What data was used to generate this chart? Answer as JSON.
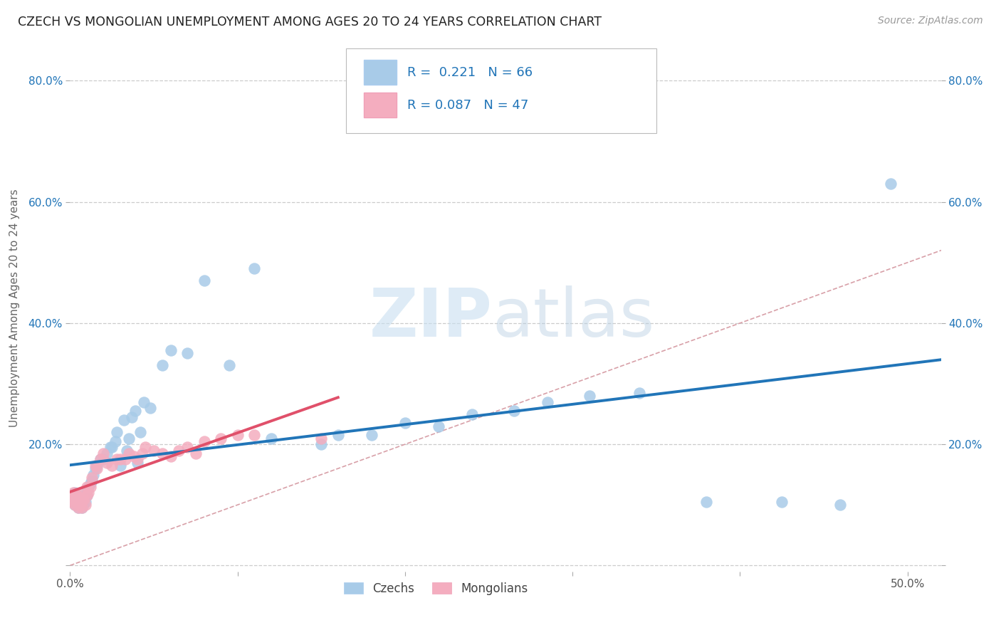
{
  "title": "CZECH VS MONGOLIAN UNEMPLOYMENT AMONG AGES 20 TO 24 YEARS CORRELATION CHART",
  "source": "Source: ZipAtlas.com",
  "ylabel": "Unemployment Among Ages 20 to 24 years",
  "xlim": [
    0.0,
    0.52
  ],
  "ylim": [
    -0.01,
    0.86
  ],
  "xticks": [
    0.0,
    0.1,
    0.2,
    0.3,
    0.4,
    0.5
  ],
  "xticklabels": [
    "0.0%",
    "",
    "",
    "",
    "",
    "50.0%"
  ],
  "yticks": [
    0.0,
    0.2,
    0.4,
    0.6,
    0.8
  ],
  "yticklabels_left": [
    "",
    "20.0%",
    "40.0%",
    "60.0%",
    "80.0%"
  ],
  "yticklabels_right": [
    "",
    "20.0%",
    "40.0%",
    "60.0%",
    "80.0%"
  ],
  "czech_R": "0.221",
  "czech_N": "66",
  "mongolian_R": "0.087",
  "mongolian_N": "47",
  "czech_scatter_color": "#A8CBE8",
  "mongolian_scatter_color": "#F4ADBF",
  "czech_line_color": "#2175B8",
  "mongolian_line_color": "#E0506A",
  "diagonal_color": "#D8A0A8",
  "background_color": "#FFFFFF",
  "grid_color": "#CCCCCC",
  "legend_czechs": "Czechs",
  "legend_mongolians": "Mongolians",
  "czech_x": [
    0.001,
    0.001,
    0.002,
    0.002,
    0.003,
    0.003,
    0.003,
    0.004,
    0.004,
    0.004,
    0.005,
    0.005,
    0.005,
    0.006,
    0.006,
    0.007,
    0.007,
    0.008,
    0.008,
    0.009,
    0.01,
    0.01,
    0.011,
    0.012,
    0.013,
    0.014,
    0.015,
    0.016,
    0.018,
    0.02,
    0.022,
    0.024,
    0.025,
    0.027,
    0.028,
    0.03,
    0.032,
    0.034,
    0.035,
    0.037,
    0.039,
    0.04,
    0.042,
    0.044,
    0.048,
    0.055,
    0.06,
    0.07,
    0.08,
    0.095,
    0.11,
    0.12,
    0.15,
    0.16,
    0.18,
    0.2,
    0.22,
    0.24,
    0.265,
    0.285,
    0.31,
    0.34,
    0.38,
    0.425,
    0.46,
    0.49
  ],
  "czech_y": [
    0.11,
    0.115,
    0.105,
    0.115,
    0.1,
    0.11,
    0.12,
    0.1,
    0.11,
    0.115,
    0.095,
    0.105,
    0.115,
    0.1,
    0.11,
    0.095,
    0.11,
    0.1,
    0.115,
    0.105,
    0.115,
    0.125,
    0.13,
    0.135,
    0.14,
    0.15,
    0.16,
    0.165,
    0.175,
    0.175,
    0.185,
    0.195,
    0.195,
    0.205,
    0.22,
    0.165,
    0.24,
    0.19,
    0.21,
    0.245,
    0.255,
    0.17,
    0.22,
    0.27,
    0.26,
    0.33,
    0.355,
    0.35,
    0.47,
    0.33,
    0.49,
    0.21,
    0.2,
    0.215,
    0.215,
    0.235,
    0.23,
    0.25,
    0.255,
    0.27,
    0.28,
    0.285,
    0.105,
    0.105,
    0.1,
    0.63
  ],
  "mongolian_x": [
    0.001,
    0.001,
    0.002,
    0.002,
    0.003,
    0.003,
    0.004,
    0.004,
    0.005,
    0.005,
    0.005,
    0.006,
    0.006,
    0.007,
    0.007,
    0.008,
    0.009,
    0.01,
    0.01,
    0.011,
    0.012,
    0.013,
    0.015,
    0.016,
    0.018,
    0.02,
    0.022,
    0.025,
    0.028,
    0.03,
    0.033,
    0.035,
    0.038,
    0.04,
    0.043,
    0.045,
    0.05,
    0.055,
    0.06,
    0.065,
    0.07,
    0.075,
    0.08,
    0.09,
    0.1,
    0.11,
    0.15
  ],
  "mongolian_y": [
    0.115,
    0.105,
    0.11,
    0.12,
    0.1,
    0.115,
    0.105,
    0.115,
    0.095,
    0.108,
    0.118,
    0.102,
    0.112,
    0.095,
    0.11,
    0.108,
    0.1,
    0.115,
    0.13,
    0.12,
    0.13,
    0.145,
    0.165,
    0.16,
    0.175,
    0.185,
    0.17,
    0.165,
    0.175,
    0.175,
    0.175,
    0.185,
    0.18,
    0.175,
    0.185,
    0.195,
    0.19,
    0.185,
    0.18,
    0.19,
    0.195,
    0.185,
    0.205,
    0.21,
    0.215,
    0.215,
    0.21
  ]
}
